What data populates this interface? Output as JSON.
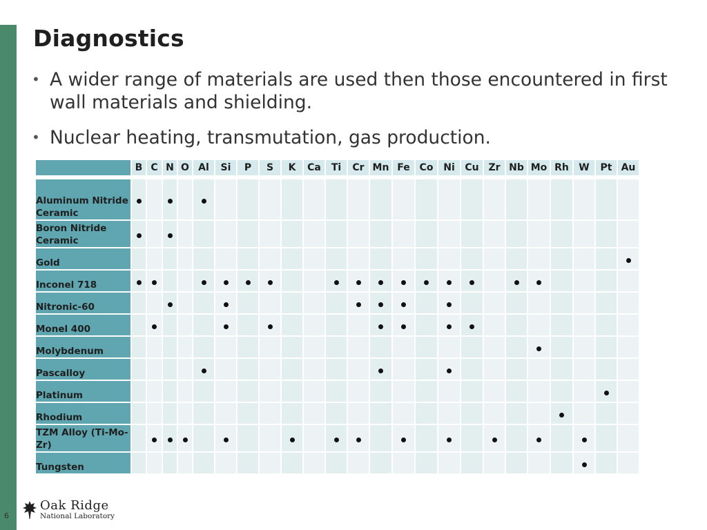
{
  "slide": {
    "title": "Diagnostics",
    "bullets": [
      "A wider range of materials are used then those encountered in first wall materials and shielding.",
      "Nuclear heating, transmutation, gas production."
    ],
    "page_number": "6"
  },
  "logo": {
    "line1": "Oak Ridge",
    "line2": "National Laboratory"
  },
  "colors": {
    "accent_bar": "#4a8a6a",
    "header_blue": "#5fa6b0",
    "cell_light": "#e3eeef"
  },
  "table": {
    "elements": [
      "B",
      "C",
      "N",
      "O",
      "Al",
      "Si",
      "P",
      "S",
      "K",
      "Ca",
      "Ti",
      "Cr",
      "Mn",
      "Fe",
      "Co",
      "Ni",
      "Cu",
      "Zr",
      "Nb",
      "Mo",
      "Rh",
      "W",
      "Pt",
      "Au"
    ],
    "rows": [
      {
        "material": "Aluminum Nitride Ceramic",
        "marks": [
          "B",
          "N",
          "Al"
        ]
      },
      {
        "material": "Boron Nitride Ceramic",
        "marks": [
          "B",
          "N"
        ]
      },
      {
        "material": "Gold",
        "marks": [
          "Au"
        ]
      },
      {
        "material": "Inconel 718",
        "marks": [
          "B",
          "C",
          "Al",
          "Si",
          "P",
          "S",
          "Ti",
          "Cr",
          "Mn",
          "Fe",
          "Co",
          "Ni",
          "Cu",
          "Nb",
          "Mo"
        ]
      },
      {
        "material": "Nitronic-60",
        "marks": [
          "N",
          "Si",
          "Cr",
          "Mn",
          "Fe",
          "Ni"
        ]
      },
      {
        "material": "Monel 400",
        "marks": [
          "C",
          "Si",
          "S",
          "Mn",
          "Fe",
          "Ni",
          "Cu"
        ]
      },
      {
        "material": "Molybdenum",
        "marks": [
          "Mo"
        ]
      },
      {
        "material": "Pascalloy",
        "marks": [
          "Al",
          "Mn",
          "Ni"
        ]
      },
      {
        "material": "Platinum",
        "marks": [
          "Pt"
        ]
      },
      {
        "material": "Rhodium",
        "marks": [
          "Rh"
        ]
      },
      {
        "material": "TZM Alloy (Ti-Mo-Zr)",
        "marks": [
          "C",
          "N",
          "O",
          "Si",
          "K",
          "Ti",
          "Cr",
          "Fe",
          "Ni",
          "Zr",
          "Mo",
          "W"
        ]
      },
      {
        "material": "Tungsten",
        "marks": [
          "W"
        ]
      }
    ]
  }
}
